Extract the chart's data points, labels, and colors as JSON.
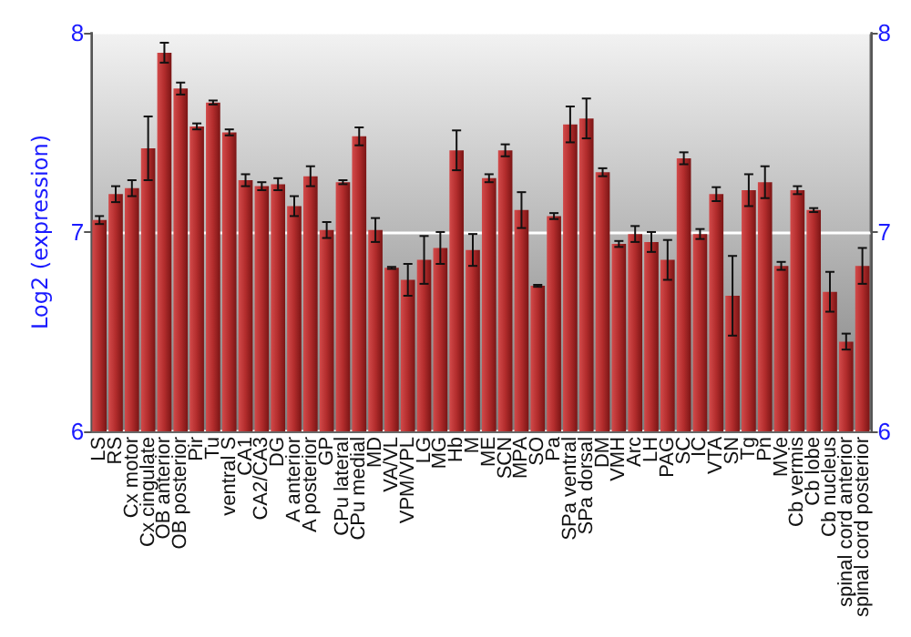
{
  "chart_data": {
    "type": "bar",
    "ylabel": "Log2 (expression)",
    "categories": [
      "LS",
      "RS",
      "Cx motor",
      "Cx cingulate",
      "OB anterior",
      "OB posterior",
      "Pir",
      "Tu",
      "ventral S",
      "CA1",
      "CA2/CA3",
      "DG",
      "A anterior",
      "A posterior",
      "GP",
      "CPu lateral",
      "CPu medial",
      "MD",
      "VA/VL",
      "VPM/VPL",
      "LG",
      "MG",
      "Hb",
      "M",
      "ME",
      "SCN",
      "MPA",
      "SO",
      "Pa",
      "SPa ventral",
      "SPa dorsal",
      "DM",
      "VMH",
      "Arc",
      "LH",
      "PAG",
      "SC",
      "IC",
      "VTA",
      "SN",
      "Tg",
      "Pn",
      "MVe",
      "Cb vermis",
      "Cb lobe",
      "Cb nucleus",
      "spinal cord anterior",
      "spinal cord posterior"
    ],
    "values": [
      7.06,
      7.19,
      7.22,
      7.42,
      7.9,
      7.72,
      7.53,
      7.65,
      7.5,
      7.26,
      7.23,
      7.24,
      7.13,
      7.28,
      7.01,
      7.25,
      7.48,
      7.01,
      6.82,
      6.76,
      6.86,
      6.92,
      7.41,
      6.91,
      7.27,
      7.41,
      7.11,
      6.73,
      7.08,
      7.54,
      7.57,
      7.3,
      6.94,
      6.99,
      6.95,
      6.86,
      7.37,
      6.99,
      7.19,
      6.68,
      7.21,
      7.25,
      6.83,
      7.21,
      7.11,
      6.7,
      6.45,
      6.83
    ],
    "errors": [
      0.02,
      0.04,
      0.04,
      0.16,
      0.05,
      0.03,
      0.015,
      0.01,
      0.015,
      0.03,
      0.02,
      0.03,
      0.05,
      0.05,
      0.04,
      0.01,
      0.045,
      0.06,
      0.005,
      0.08,
      0.12,
      0.08,
      0.1,
      0.08,
      0.02,
      0.03,
      0.09,
      0.005,
      0.015,
      0.09,
      0.1,
      0.02,
      0.015,
      0.04,
      0.05,
      0.1,
      0.03,
      0.025,
      0.035,
      0.2,
      0.08,
      0.08,
      0.02,
      0.02,
      0.01,
      0.1,
      0.04,
      0.09
    ],
    "color": "#b22c2c",
    "ylim": [
      6,
      8
    ],
    "yticks": [
      6,
      7,
      8
    ],
    "y2lim": [
      6,
      8
    ],
    "y2ticks": [
      6,
      7,
      8
    ],
    "grid": "y"
  }
}
